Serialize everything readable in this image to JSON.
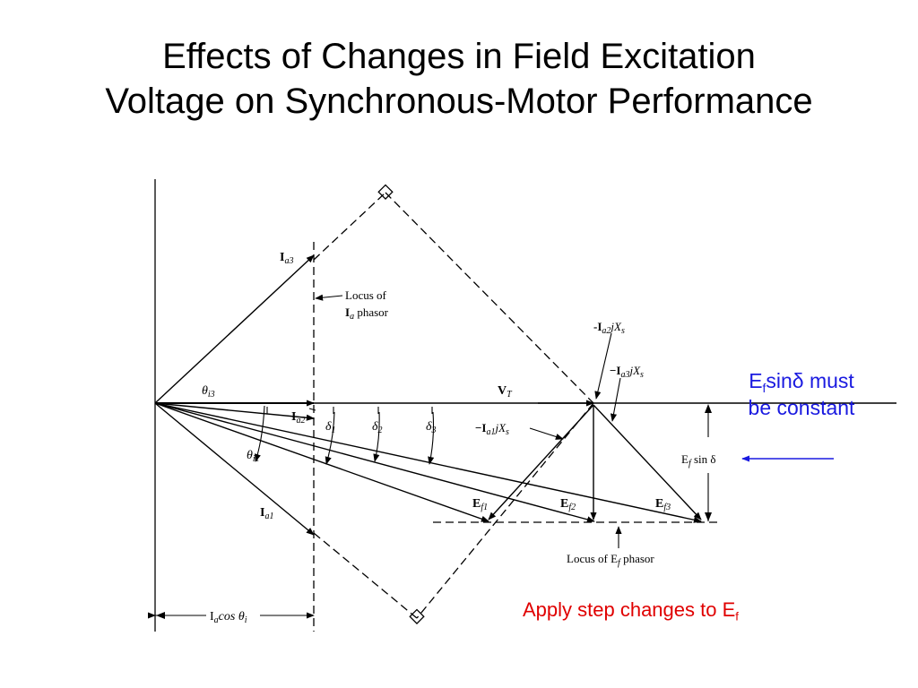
{
  "slide": {
    "title_line1": "Effects of Changes in Field Excitation",
    "title_line2": "Voltage on Synchronous-Motor Performance"
  },
  "diagram": {
    "labels": {
      "ia3": "I",
      "ia3_sub": "a3",
      "locus_ia_1": "Locus of",
      "locus_ia_2_main": "I",
      "locus_ia_2_sub": "a",
      "locus_ia_2_rest": " phasor",
      "theta_i3": "θ",
      "theta_i3_sub": "i3",
      "vt": "V",
      "vt_sub": "T",
      "ia2": "I",
      "ia2_sub": "a2",
      "delta1": "δ",
      "delta1_sub": "1",
      "delta2": "δ",
      "delta2_sub": "2",
      "delta3": "δ",
      "delta3_sub": "3",
      "theta_i1": "θ",
      "theta_i1_sub": "i1",
      "ia1": "I",
      "ia1_sub": "a1",
      "ia2jxs_pre": "-I",
      "ia2jxs_sub": "a2",
      "ia2jxs_post": "jX",
      "ia2jxs_sub2": "s",
      "ia3jxs_pre": "−I",
      "ia3jxs_sub": "a3",
      "ia3jxs_post": "jX",
      "ia3jxs_sub2": "s",
      "ia1jxs_pre": "−I",
      "ia1jxs_sub": "a1",
      "ia1jxs_post": "jX",
      "ia1jxs_sub2": "s",
      "ef1": "E",
      "ef1_sub": "f1",
      "ef2": "E",
      "ef2_sub": "f2",
      "ef3": "E",
      "ef3_sub": "f3",
      "efsin_pre": "E",
      "efsin_sub": "f",
      "efsin_post": " sin δ",
      "locus_ef_pre": "Locus of E",
      "locus_ef_sub": "f",
      "locus_ef_post": " phasor",
      "iacos_pre": "I",
      "iacos_sub": "a",
      "iacos_post": "cos θ",
      "iacos_sub2": "i"
    }
  },
  "notes": {
    "constant_pre": "E",
    "constant_sub": "f",
    "constant_post": "sinδ must",
    "constant_line2": "be constant",
    "step_pre": "Apply step changes to E",
    "step_sub": "f"
  },
  "colors": {
    "note_blue": "#1a1ae0",
    "note_red": "#e00000",
    "ink": "#000000"
  }
}
